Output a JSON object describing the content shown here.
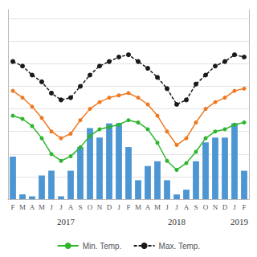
{
  "chart_data": {
    "type": "bar",
    "categories": [
      "F",
      "M",
      "A",
      "M",
      "J",
      "J",
      "A",
      "S",
      "O",
      "N",
      "D",
      "J",
      "F",
      "M",
      "A",
      "M",
      "J",
      "J",
      "A",
      "S",
      "O",
      "N",
      "D",
      "J",
      "F"
    ],
    "series": [
      {
        "type": "bar",
        "color": "#4d96d4",
        "values": [
          45,
          5,
          3,
          25,
          30,
          3,
          30,
          55,
          75,
          65,
          80,
          80,
          55,
          20,
          35,
          40,
          20,
          5,
          10,
          40,
          60,
          65,
          65,
          80,
          30
        ]
      },
      {
        "type": "line",
        "name": "Min. Temp.",
        "color": "#2db52d",
        "marker": "circle",
        "line_style": "solid",
        "axis": "y2",
        "values": [
          18.5,
          17.8,
          16.2,
          13.5,
          10.0,
          8.5,
          9.5,
          11.5,
          14.0,
          15.5,
          16.0,
          16.5,
          17.5,
          17.0,
          15.5,
          12.5,
          8.5,
          6.5,
          8.0,
          10.5,
          13.5,
          15.0,
          15.5,
          16.5,
          17.0
        ]
      },
      {
        "type": "line",
        "color": "#f07820",
        "marker": "circle",
        "line_style": "solid",
        "axis": "y2",
        "values": [
          24.0,
          22.5,
          20.5,
          18.0,
          15.0,
          13.5,
          14.5,
          17.5,
          20.0,
          21.5,
          22.5,
          23.0,
          23.5,
          22.5,
          21.0,
          18.5,
          15.0,
          12.0,
          13.5,
          17.0,
          20.0,
          21.5,
          22.5,
          24.0,
          24.5
        ]
      },
      {
        "type": "line",
        "name": "Max. Temp.",
        "color": "#1a1a1a",
        "marker": "circle",
        "line_style": "dashed",
        "axis": "y2",
        "values": [
          30.5,
          29.5,
          27.5,
          26.0,
          23.5,
          22.0,
          22.5,
          25.0,
          27.5,
          29.5,
          30.5,
          31.5,
          32.0,
          30.5,
          29.0,
          27.0,
          24.5,
          21.0,
          22.0,
          25.5,
          27.5,
          29.5,
          30.5,
          32.0,
          31.5
        ]
      }
    ],
    "ylim": [
      0,
      200
    ],
    "y2lim": [
      0,
      42
    ],
    "y2ticks": [
      5,
      10,
      15,
      20,
      25,
      30,
      35,
      40
    ],
    "grid": true,
    "legend": "bottom",
    "tick_labels": "x",
    "annotations": [
      {
        "text": "2017",
        "x": 5.5
      },
      {
        "text": "2018",
        "x": 17.0
      },
      {
        "text": "2019",
        "x": 23.5
      }
    ]
  }
}
